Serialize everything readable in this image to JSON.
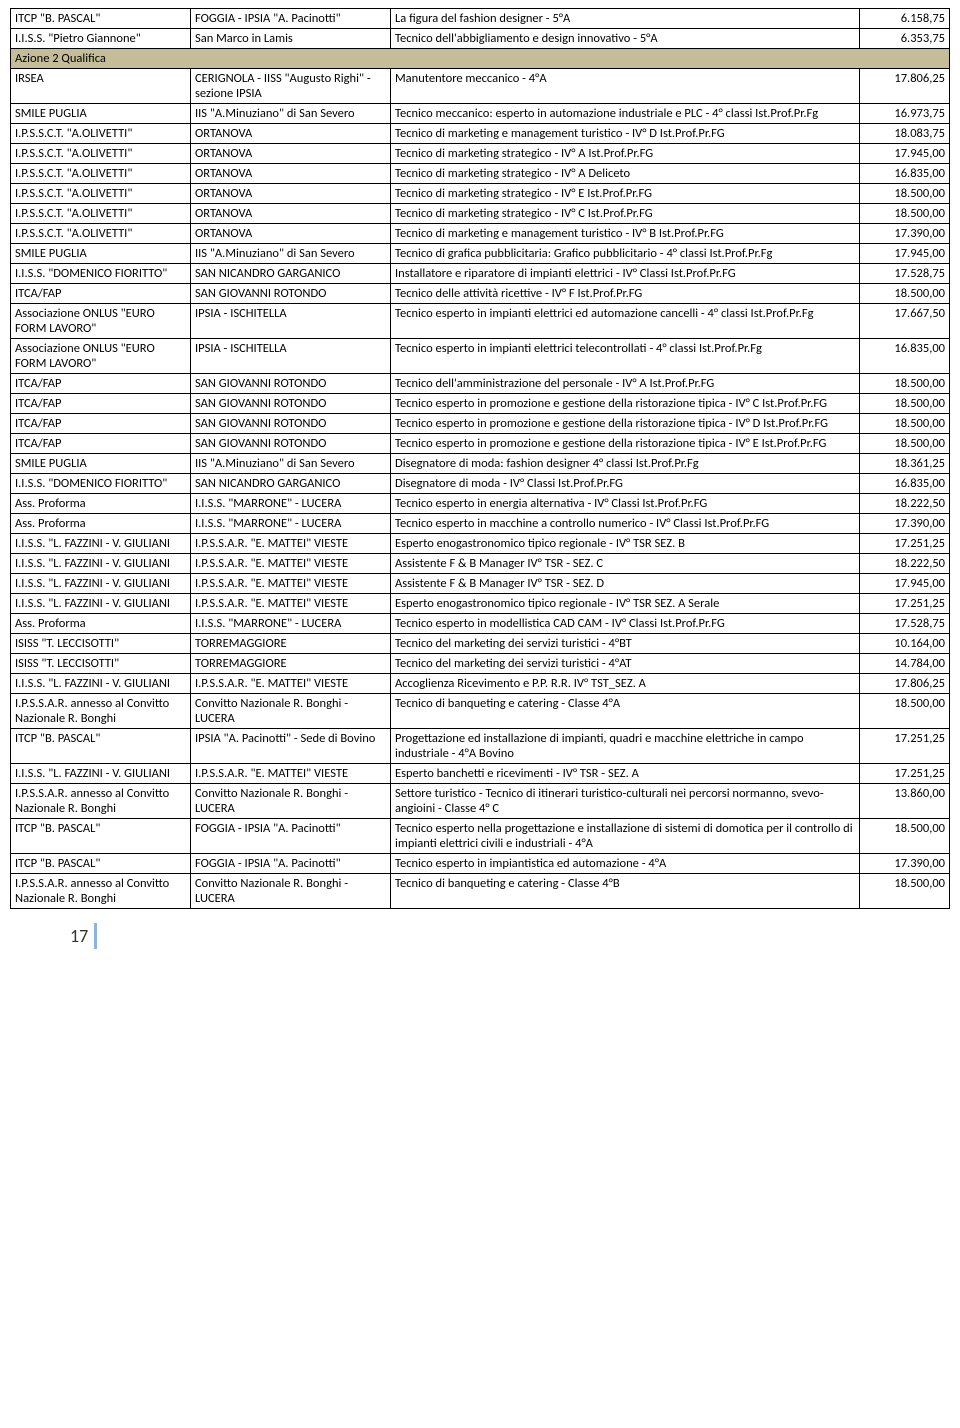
{
  "colors": {
    "section_bg": "#c4bd97",
    "border": "#000000",
    "footer_accent": "#8db3e2"
  },
  "section_label": "Azione 2 Qualifica",
  "page_number": "17",
  "pre_rows": [
    [
      "ITCP \"B. PASCAL\"",
      "FOGGIA - IPSIA \"A. Pacinotti\"",
      "La figura del fashion designer - 5°A",
      "6.158,75"
    ],
    [
      "I.I.S.S. \"Pietro Giannone\"",
      "San Marco in Lamis",
      "Tecnico dell'abbigliamento e design innovativo - 5°A",
      "6.353,75"
    ]
  ],
  "rows": [
    [
      "IRSEA",
      "CERIGNOLA - IISS \"Augusto Righi\" - sezione IPSIA",
      "Manutentore meccanico - 4°A",
      "17.806,25"
    ],
    [
      "SMILE PUGLIA",
      "IIS \"A.Minuziano\" di San Severo",
      "Tecnico meccanico: esperto in automazione industriale e PLC - 4° classi Ist.Prof.Pr.Fg",
      "16.973,75"
    ],
    [
      "I.P.S.S.C.T. \"A.OLIVETTI\"",
      "ORTANOVA",
      "Tecnico di marketing e management turistico - IV° D Ist.Prof.Pr.FG",
      "18.083,75"
    ],
    [
      "I.P.S.S.C.T. \"A.OLIVETTI\"",
      "ORTANOVA",
      "Tecnico di marketing strategico - IV° A Ist.Prof.Pr.FG",
      "17.945,00"
    ],
    [
      "I.P.S.S.C.T. \"A.OLIVETTI\"",
      "ORTANOVA",
      "Tecnico di marketing strategico - IV° A Deliceto",
      "16.835,00"
    ],
    [
      "I.P.S.S.C.T. \"A.OLIVETTI\"",
      "ORTANOVA",
      "Tecnico di marketing strategico - IV° E Ist.Prof.Pr.FG",
      "18.500,00"
    ],
    [
      "I.P.S.S.C.T. \"A.OLIVETTI\"",
      "ORTANOVA",
      "Tecnico di marketing strategico - IV° C Ist.Prof.Pr.FG",
      "18.500,00"
    ],
    [
      "I.P.S.S.C.T. \"A.OLIVETTI\"",
      "ORTANOVA",
      "Tecnico di marketing e management turistico - IV° B Ist.Prof.Pr.FG",
      "17.390,00"
    ],
    [
      "SMILE PUGLIA",
      "IIS \"A.Minuziano\" di San Severo",
      "Tecnico di grafica pubblicitaria: Grafico pubblicitario - 4° classi Ist.Prof.Pr.Fg",
      "17.945,00"
    ],
    [
      "I.I.S.S. \"DOMENICO FIORITTO\"",
      "SAN NICANDRO GARGANICO",
      "Installatore e riparatore di impianti elettrici - IV° Classi Ist.Prof.Pr.FG",
      "17.528,75"
    ],
    [
      "ITCA/FAP",
      "SAN GIOVANNI ROTONDO",
      "Tecnico delle attività ricettive - IV° F Ist.Prof.Pr.FG",
      "18.500,00"
    ],
    [
      "Associazione ONLUS \"EURO FORM LAVORO\"",
      "IPSIA - ISCHITELLA",
      "Tecnico esperto in impianti elettrici ed automazione cancelli - 4° classi Ist.Prof.Pr.Fg",
      "17.667,50"
    ],
    [
      "Associazione ONLUS \"EURO FORM LAVORO\"",
      "IPSIA - ISCHITELLA",
      "Tecnico esperto in impianti elettrici telecontrollati - 4° classi Ist.Prof.Pr.Fg",
      "16.835,00"
    ],
    [
      "ITCA/FAP",
      "SAN GIOVANNI ROTONDO",
      "Tecnico dell'amministrazione del personale - IV° A Ist.Prof.Pr.FG",
      "18.500,00"
    ],
    [
      "ITCA/FAP",
      "SAN GIOVANNI ROTONDO",
      "Tecnico esperto in promozione e gestione della ristorazione tipica - IV° C Ist.Prof.Pr.FG",
      "18.500,00"
    ],
    [
      "ITCA/FAP",
      "SAN GIOVANNI ROTONDO",
      "Tecnico esperto in promozione e gestione della ristorazione tipica - IV° D Ist.Prof.Pr.FG",
      "18.500,00"
    ],
    [
      "ITCA/FAP",
      "SAN GIOVANNI ROTONDO",
      "Tecnico esperto in promozione e gestione della ristorazione tipica - IV° E Ist.Prof.Pr.FG",
      "18.500,00"
    ],
    [
      "SMILE PUGLIA",
      "IIS \"A.Minuziano\" di San Severo",
      "Disegnatore di moda: fashion designer 4° classi Ist.Prof.Pr.Fg",
      "18.361,25"
    ],
    [
      "I.I.S.S. \"DOMENICO FIORITTO\"",
      "SAN NICANDRO GARGANICO",
      "Disegnatore di moda - IV° Classi Ist.Prof.Pr.FG",
      "16.835,00"
    ],
    [
      "Ass. Proforma",
      "I.I.S.S. \"MARRONE\" - LUCERA",
      "Tecnico esperto in energia alternativa - IV° Classi Ist.Prof.Pr.FG",
      "18.222,50"
    ],
    [
      "Ass. Proforma",
      "I.I.S.S. \"MARRONE\" - LUCERA",
      "Tecnico esperto in macchine a controllo numerico - IV° Classi Ist.Prof.Pr.FG",
      "17.390,00"
    ],
    [
      "I.I.S.S. \"L. FAZZINI - V. GIULIANI",
      "I.P.S.S.A.R. \"E. MATTEI\" VIESTE",
      "Esperto enogastronomico tipico regionale - IV° TSR SEZ. B",
      "17.251,25"
    ],
    [
      "I.I.S.S. \"L. FAZZINI - V. GIULIANI",
      "I.P.S.S.A.R. \"E. MATTEI\" VIESTE",
      "Assistente F & B Manager IV° TSR - SEZ. C",
      "18.222,50"
    ],
    [
      "I.I.S.S. \"L. FAZZINI - V. GIULIANI",
      "I.P.S.S.A.R. \"E. MATTEI\" VIESTE",
      "Assistente F & B Manager IV° TSR - SEZ. D",
      "17.945,00"
    ],
    [
      "I.I.S.S. \"L. FAZZINI - V. GIULIANI",
      "I.P.S.S.A.R. \"E. MATTEI\" VIESTE",
      "Esperto enogastronomico tipico regionale - IV° TSR SEZ. A Serale",
      "17.251,25"
    ],
    [
      "Ass. Proforma",
      "I.I.S.S. \"MARRONE\" - LUCERA",
      "Tecnico esperto in modellistica CAD CAM - IV° Classi Ist.Prof.Pr.FG",
      "17.528,75"
    ],
    [
      "ISISS \"T. LECCISOTTI\"",
      "TORREMAGGIORE",
      "Tecnico del marketing dei servizi turistici - 4°BT",
      "10.164,00"
    ],
    [
      "ISISS \"T. LECCISOTTI\"",
      "TORREMAGGIORE",
      "Tecnico del marketing dei servizi turistici - 4°AT",
      "14.784,00"
    ],
    [
      "I.I.S.S. \"L. FAZZINI - V. GIULIANI",
      "I.P.S.S.A.R. \"E. MATTEI\" VIESTE",
      "Accoglienza Ricevimento e P.P. R.R. IV° TST_SEZ. A",
      "17.806,25"
    ],
    [
      "I.P.S.S.A.R. annesso al Convitto Nazionale R. Bonghi",
      "Convitto Nazionale R. Bonghi - LUCERA",
      "Tecnico di banqueting e catering - Classe 4°A",
      "18.500,00"
    ],
    [
      "ITCP \"B. PASCAL\"",
      "IPSIA \"A. Pacinotti\" - Sede di Bovino",
      "Progettazione ed installazione di impianti, quadri e macchine elettriche in campo industriale - 4°A Bovino",
      "17.251,25"
    ],
    [
      "I.I.S.S. \"L. FAZZINI - V. GIULIANI",
      "I.P.S.S.A.R. \"E. MATTEI\" VIESTE",
      "Esperto banchetti e ricevimenti - IV° TSR - SEZ. A",
      "17.251,25"
    ],
    [
      "I.P.S.S.A.R. annesso al Convitto Nazionale R. Bonghi",
      "Convitto Nazionale R. Bonghi - LUCERA",
      "Settore turistico - Tecnico di itinerari turistico-culturali nei percorsi normanno, svevo-angioini - Classe 4° C",
      "13.860,00"
    ],
    [
      "ITCP \"B. PASCAL\"",
      "FOGGIA - IPSIA \"A. Pacinotti\"",
      "Tecnico esperto nella progettazione e installazione di sistemi di domotica per il controllo di impianti elettrici civili e industriali - 4°A",
      "18.500,00"
    ],
    [
      "ITCP \"B. PASCAL\"",
      "FOGGIA - IPSIA \"A. Pacinotti\"",
      "Tecnico esperto in impiantistica ed automazione - 4°A",
      "17.390,00"
    ],
    [
      "I.P.S.S.A.R. annesso al Convitto Nazionale R. Bonghi",
      "Convitto Nazionale R. Bonghi - LUCERA",
      "Tecnico di banqueting e catering - Classe 4°B",
      "18.500,00"
    ]
  ]
}
